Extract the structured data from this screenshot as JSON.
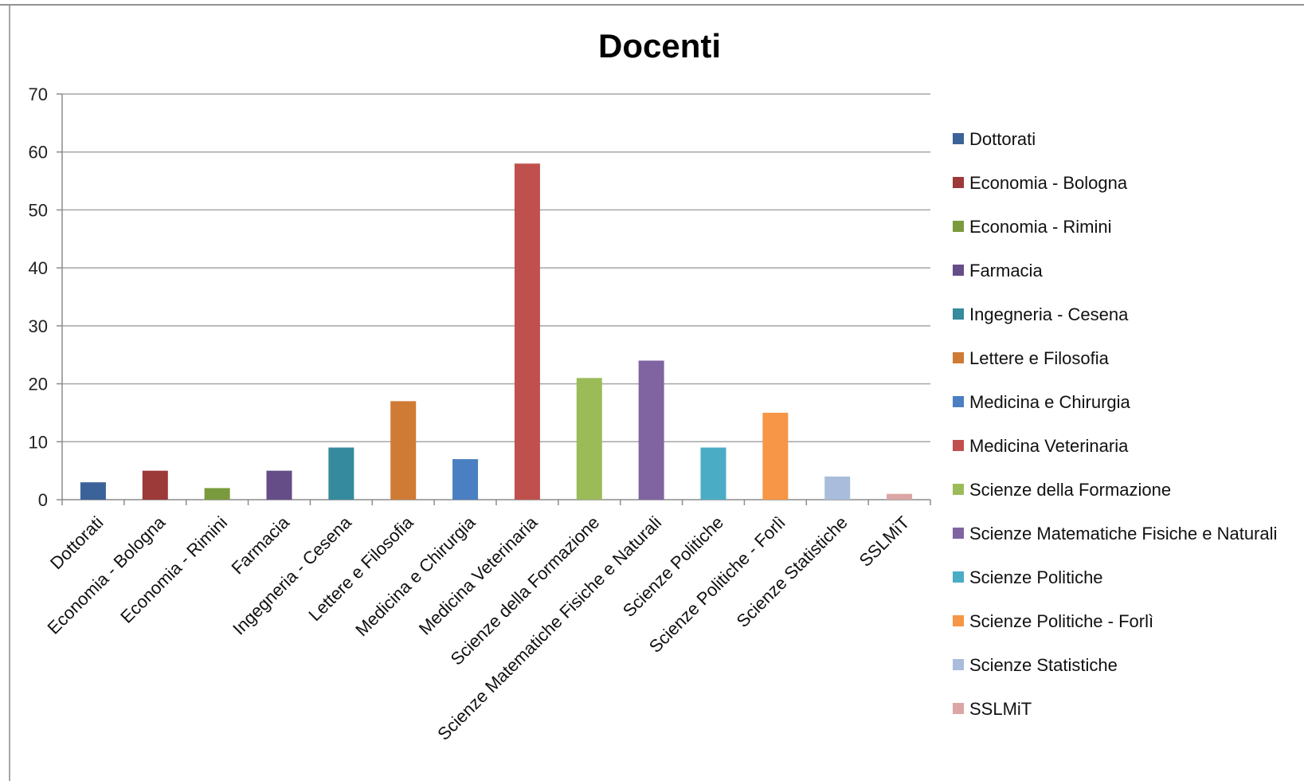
{
  "chart_data": {
    "type": "bar",
    "title": "Docenti",
    "xlabel": "",
    "ylabel": "",
    "ylim": [
      0,
      70
    ],
    "yticks": [
      0,
      10,
      20,
      30,
      40,
      50,
      60,
      70
    ],
    "grid": true,
    "legend_position": "right",
    "categories": [
      "Dottorati",
      "Economia - Bologna",
      "Economia - Rimini",
      "Farmacia",
      "Ingegneria - Cesena",
      "Lettere e Filosofia",
      "Medicina e Chirurgia",
      "Medicina Veterinaria",
      "Scienze della Formazione",
      "Scienze Matematiche Fisiche e Naturali",
      "Scienze Politiche",
      "Scienze Politiche - Forlì",
      "Scienze Statistiche",
      "SSLMiT"
    ],
    "values": [
      3,
      5,
      2,
      5,
      9,
      17,
      7,
      58,
      21,
      24,
      9,
      15,
      4,
      1
    ],
    "colors": [
      "#3c6399",
      "#9b3a38",
      "#7a9a3e",
      "#654d87",
      "#358a9d",
      "#cf7a35",
      "#4a7fc1",
      "#c0504d",
      "#9bbb59",
      "#8064a2",
      "#4bacc6",
      "#f79646",
      "#a9bcdb",
      "#dba6a5"
    ]
  }
}
